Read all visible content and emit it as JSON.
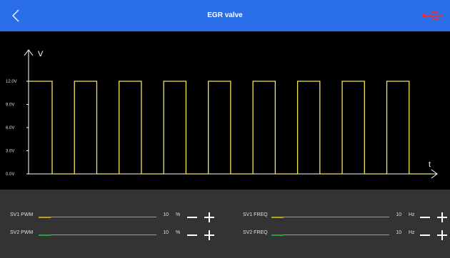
{
  "header": {
    "title": "EGR valve",
    "back_icon": "chevron-left-icon",
    "usb_icon": "usb-icon",
    "background": "#2b6fe8",
    "usb_color": "#ff2a2a"
  },
  "chart_data": {
    "type": "line",
    "ylabel": "V",
    "xlabel": "t",
    "y_ticks": [
      "0.0V",
      "3.0V",
      "6.0V",
      "9.0V",
      "12.0V"
    ],
    "y_tick_values": [
      0,
      3,
      6,
      9,
      12
    ],
    "ylim": [
      0,
      12
    ],
    "grid": false,
    "line_color": "#f4e45a",
    "series": [
      {
        "waveform": "square",
        "high": 12,
        "low": 0,
        "high_first": true,
        "cycles": 9
      }
    ]
  },
  "controls": [
    {
      "label": "SV1 PWM",
      "value": "10",
      "fraction": 0.1,
      "unit": "%",
      "fill_color": "#b8a21a"
    },
    {
      "label": "SV2 PWM",
      "value": "10",
      "fraction": 0.1,
      "unit": "%",
      "fill_color": "#1fa33a"
    },
    {
      "label": "SV1 FREQ",
      "value": "10",
      "fraction": 0.1,
      "unit": "Hz",
      "fill_color": "#b8a21a"
    },
    {
      "label": "SV2 FREQ",
      "value": "10",
      "fraction": 0.1,
      "unit": "Hz",
      "fill_color": "#1fa33a"
    }
  ]
}
